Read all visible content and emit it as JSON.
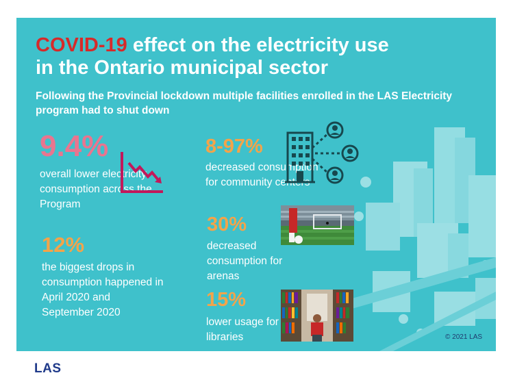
{
  "title": {
    "highlight": "COVID-19",
    "line1_rest": " effect on the electricity use",
    "line2": "in the Ontario municipal sector"
  },
  "subtitle": "Following the Provincial lockdown multiple facilities enrolled in the LAS Electricity program had to shut down",
  "stats": [
    {
      "value": "9.4%",
      "description": "overall lower electricity consumption across the Program"
    },
    {
      "value": "12%",
      "description": "the biggest drops in consumption happened in April 2020 and September 2020"
    },
    {
      "value": "8-97%",
      "description": "decreased consumption for community centers"
    },
    {
      "value": "30%",
      "description": "decreased consumption for arenas"
    },
    {
      "value": "15%",
      "description": "lower usage for libraries"
    }
  ],
  "icons": {
    "decline": "declining-chart-icon",
    "community": "building-community-icon",
    "arena": "arena-photo",
    "library": "library-photo"
  },
  "colors": {
    "background": "#3fc1cb",
    "title_highlight": "#d62a2a",
    "pink_stat": "#e9758f",
    "orange_stat": "#f3a44a",
    "icon_dark": "#17484e"
  },
  "copyright": "© 2021 LAS",
  "logo": "LAS"
}
